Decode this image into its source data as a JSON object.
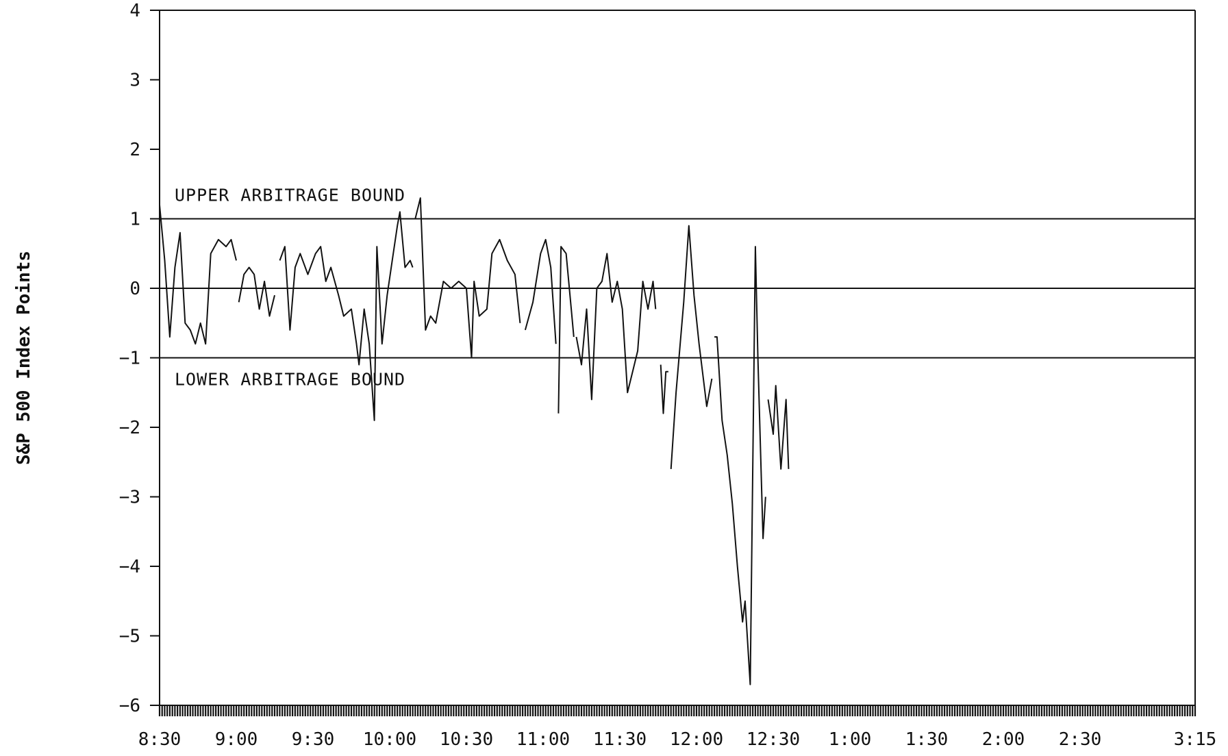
{
  "chart_data": {
    "type": "line",
    "title": "",
    "xlabel": "",
    "ylabel": "S&P 500 Index Points",
    "ylim": [
      -6,
      4
    ],
    "y_ticks": [
      4,
      3,
      2,
      1,
      0,
      -1,
      -2,
      -3,
      -4,
      -5,
      -6
    ],
    "y_tick_labels": [
      "4",
      "3",
      "2",
      "1",
      "0",
      "−1",
      "−2",
      "−3",
      "−4",
      "−5",
      "−6"
    ],
    "x_range": [
      "8:30",
      "3:15"
    ],
    "x_tick_labels": [
      "8:30",
      "9:00",
      "9:30",
      "10:00",
      "10:30",
      "11:00",
      "11:30",
      "12:00",
      "12:30",
      "1:00",
      "1:30",
      "2:00",
      "2:30",
      "3:15"
    ],
    "grid": false,
    "reference_lines": [
      {
        "y": 1,
        "label": "UPPER ARBITRAGE BOUND"
      },
      {
        "y": 0,
        "label": ""
      },
      {
        "y": -1,
        "label": "LOWER ARBITRAGE BOUND"
      }
    ],
    "series": [
      {
        "segments": [
          [
            [
              "8:30",
              1.2
            ],
            [
              "8:32",
              0.4
            ],
            [
              "8:34",
              -0.7
            ],
            [
              "8:36",
              0.3
            ],
            [
              "8:38",
              0.8
            ],
            [
              "8:40",
              -0.5
            ],
            [
              "8:42",
              -0.6
            ],
            [
              "8:44",
              -0.8
            ],
            [
              "8:46",
              -0.5
            ],
            [
              "8:48",
              -0.8
            ],
            [
              "8:50",
              0.5
            ],
            [
              "8:53",
              0.7
            ],
            [
              "8:56",
              0.6
            ],
            [
              "8:58",
              0.7
            ],
            [
              "9:00",
              0.4
            ]
          ],
          [
            [
              "9:01",
              -0.2
            ],
            [
              "9:03",
              0.2
            ],
            [
              "9:05",
              0.3
            ],
            [
              "9:07",
              0.2
            ],
            [
              "9:09",
              -0.3
            ],
            [
              "9:11",
              0.1
            ],
            [
              "9:13",
              -0.4
            ],
            [
              "9:15",
              -0.1
            ]
          ],
          [
            [
              "9:17",
              0.4
            ],
            [
              "9:19",
              0.6
            ],
            [
              "9:21",
              -0.6
            ],
            [
              "9:23",
              0.3
            ],
            [
              "9:25",
              0.5
            ],
            [
              "9:28",
              0.2
            ],
            [
              "9:31",
              0.5
            ],
            [
              "9:33",
              0.6
            ],
            [
              "9:35",
              0.1
            ],
            [
              "9:37",
              0.3
            ],
            [
              "9:40",
              -0.1
            ],
            [
              "9:42",
              -0.4
            ],
            [
              "9:45",
              -0.3
            ],
            [
              "9:47",
              -0.8
            ],
            [
              "9:48",
              -1.1
            ],
            [
              "9:50",
              -0.3
            ],
            [
              "9:52",
              -0.8
            ],
            [
              "9:54",
              -1.9
            ],
            [
              "9:55",
              0.6
            ],
            [
              "9:57",
              -0.8
            ],
            [
              "9:59",
              -0.1
            ],
            [
              "10:01",
              0.4
            ],
            [
              "10:03",
              0.9
            ],
            [
              "10:04",
              1.1
            ],
            [
              "10:06",
              0.3
            ],
            [
              "10:08",
              0.4
            ],
            [
              "10:09",
              0.3
            ]
          ],
          [
            [
              "10:10",
              1.0
            ],
            [
              "10:12",
              1.3
            ],
            [
              "10:14",
              -0.6
            ],
            [
              "10:16",
              -0.4
            ],
            [
              "10:18",
              -0.5
            ],
            [
              "10:21",
              0.1
            ],
            [
              "10:24",
              0.0
            ],
            [
              "10:27",
              0.1
            ],
            [
              "10:30",
              0.0
            ],
            [
              "10:32",
              -1.0
            ],
            [
              "10:33",
              0.1
            ],
            [
              "10:35",
              -0.4
            ],
            [
              "10:38",
              -0.3
            ],
            [
              "10:40",
              0.5
            ],
            [
              "10:43",
              0.7
            ],
            [
              "10:46",
              0.4
            ],
            [
              "10:49",
              0.2
            ],
            [
              "10:51",
              -0.5
            ]
          ],
          [
            [
              "10:53",
              -0.6
            ],
            [
              "10:56",
              -0.2
            ],
            [
              "10:59",
              0.5
            ],
            [
              "11:01",
              0.7
            ],
            [
              "11:03",
              0.3
            ],
            [
              "11:05",
              -0.8
            ]
          ],
          [
            [
              "11:06",
              -1.8
            ],
            [
              "11:07",
              0.6
            ],
            [
              "11:09",
              0.5
            ],
            [
              "11:11",
              -0.3
            ],
            [
              "11:12",
              -0.7
            ]
          ],
          [
            [
              "11:13",
              -0.7
            ],
            [
              "11:15",
              -1.1
            ],
            [
              "11:17",
              -0.3
            ],
            [
              "11:19",
              -1.6
            ],
            [
              "11:21",
              0.0
            ],
            [
              "11:23",
              0.1
            ],
            [
              "11:25",
              0.5
            ],
            [
              "11:27",
              -0.2
            ],
            [
              "11:29",
              0.1
            ],
            [
              "11:31",
              -0.3
            ],
            [
              "11:33",
              -1.5
            ],
            [
              "11:35",
              -1.2
            ],
            [
              "11:37",
              -0.9
            ],
            [
              "11:39",
              0.1
            ],
            [
              "11:41",
              -0.3
            ],
            [
              "11:43",
              0.1
            ],
            [
              "11:44",
              -0.3
            ]
          ],
          [
            [
              "11:46",
              -1.1
            ],
            [
              "11:47",
              -1.8
            ],
            [
              "11:48",
              -1.2
            ],
            [
              "11:49",
              -1.2
            ]
          ],
          [
            [
              "11:50",
              -2.6
            ],
            [
              "11:52",
              -1.5
            ],
            [
              "11:55",
              -0.2
            ],
            [
              "11:57",
              0.9
            ],
            [
              "11:59",
              -0.1
            ],
            [
              "12:01",
              -0.8
            ],
            [
              "12:03",
              -1.4
            ],
            [
              "12:04",
              -1.7
            ],
            [
              "12:06",
              -1.3
            ]
          ],
          [
            [
              "12:07",
              -0.7
            ],
            [
              "12:08",
              -0.7
            ],
            [
              "12:10",
              -1.9
            ],
            [
              "12:12",
              -2.4
            ],
            [
              "12:14",
              -3.1
            ],
            [
              "12:16",
              -4.0
            ],
            [
              "12:18",
              -4.8
            ],
            [
              "12:19",
              -4.5
            ],
            [
              "12:21",
              -5.7
            ],
            [
              "12:23",
              0.6
            ],
            [
              "12:24",
              -1.0
            ],
            [
              "12:26",
              -3.6
            ],
            [
              "12:27",
              -3.0
            ]
          ],
          [
            [
              "12:28",
              -1.6
            ],
            [
              "12:30",
              -2.1
            ],
            [
              "12:31",
              -1.4
            ],
            [
              "12:33",
              -2.6
            ],
            [
              "12:35",
              -1.6
            ],
            [
              "12:36",
              -2.6
            ]
          ]
        ]
      }
    ]
  }
}
